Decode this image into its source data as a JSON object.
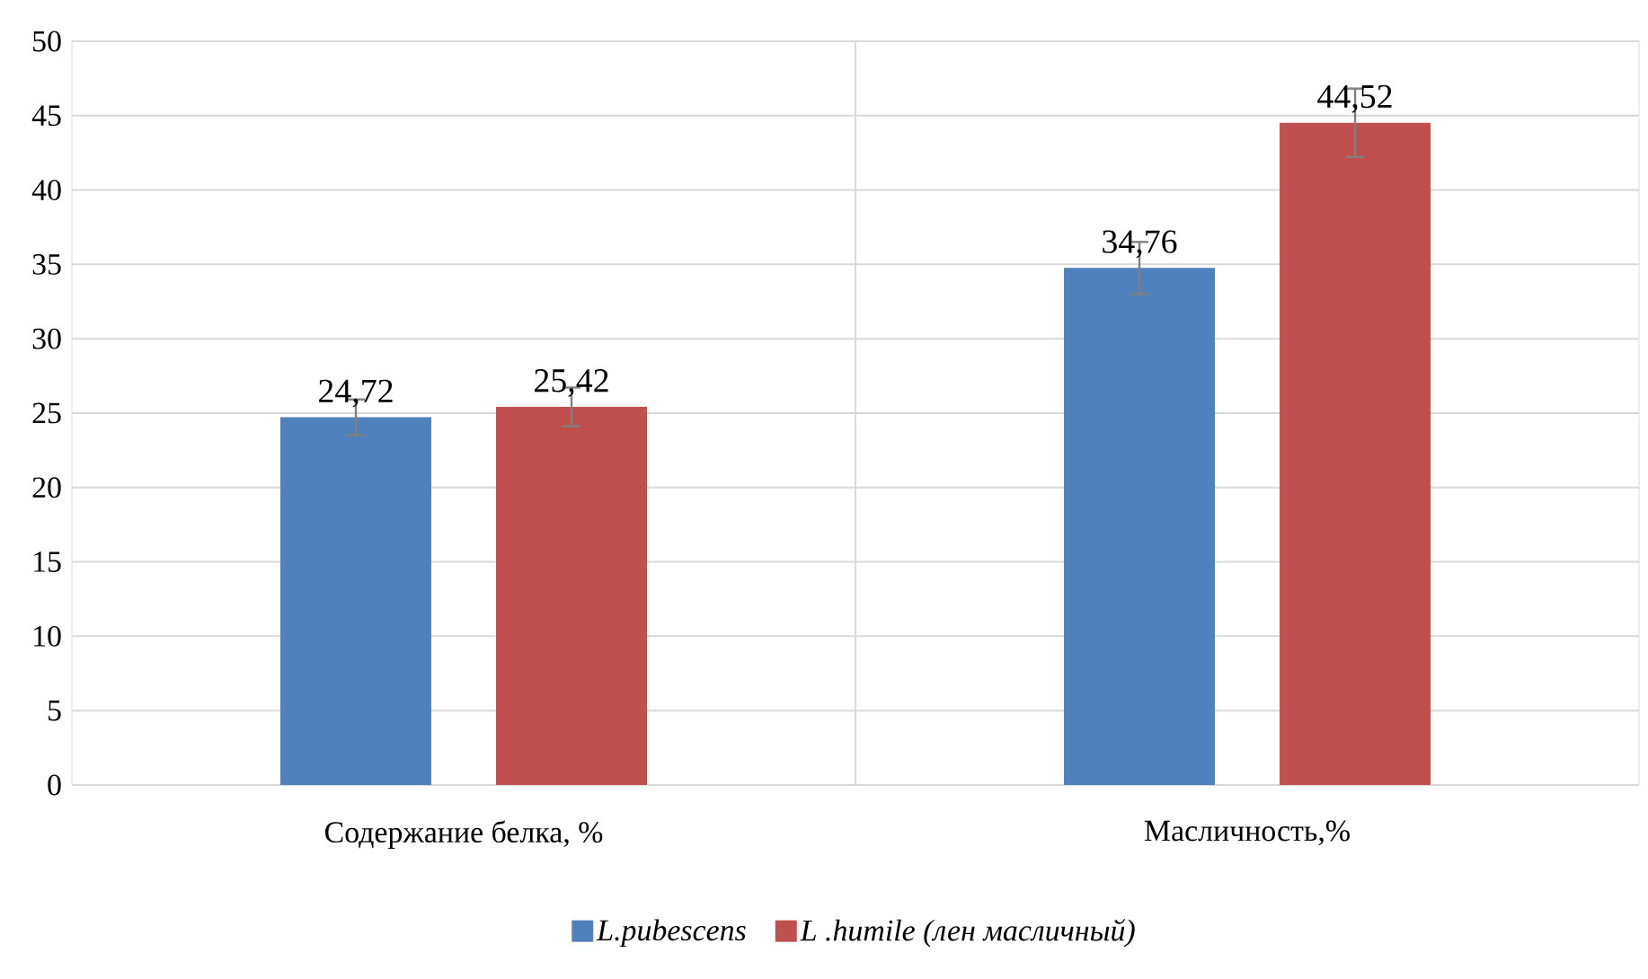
{
  "chart_data": {
    "type": "bar",
    "categories": [
      "Содержание белка, %",
      "Масличность,%"
    ],
    "series": [
      {
        "name": "L.pubescens",
        "color": "#4f81bd",
        "values": [
          24.72,
          34.76
        ],
        "value_labels": [
          "24,72",
          "34,76"
        ],
        "errors": [
          1.2,
          1.75
        ]
      },
      {
        "name": "L .humile (лен масличный)",
        "color": "#c0504d",
        "values": [
          25.42,
          44.52
        ],
        "value_labels": [
          "25,42",
          "44,52"
        ],
        "errors": [
          1.3,
          2.3
        ]
      }
    ],
    "ylim": [
      0,
      50
    ],
    "yticks": [
      0,
      5,
      10,
      15,
      20,
      25,
      30,
      35,
      40,
      45,
      50
    ],
    "grid": true,
    "legend": "bottom"
  }
}
